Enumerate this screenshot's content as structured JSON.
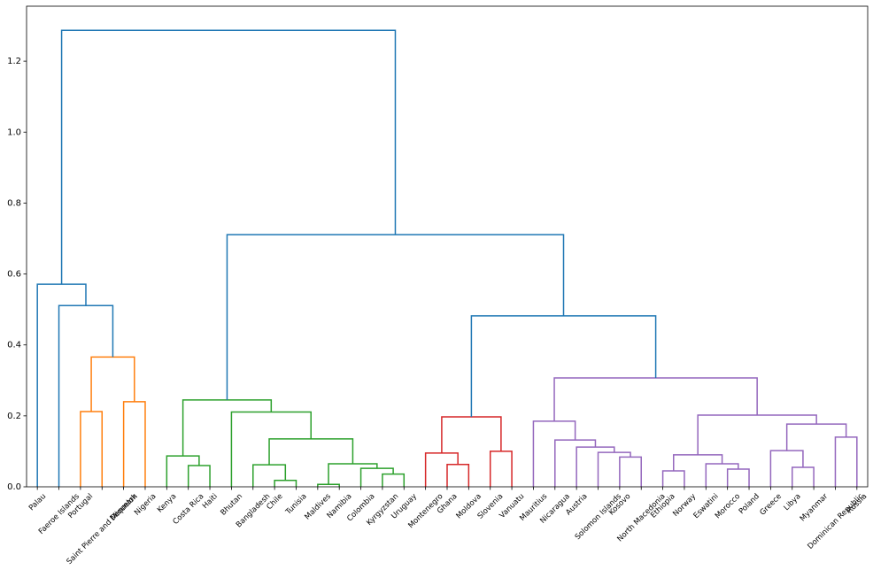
{
  "chart_data": {
    "type": "dendrogram",
    "leaves": [
      "Palau",
      "Faeroe Islands",
      "Portugal",
      "Saint Pierre and Miquelon",
      "Denmark",
      "Nigeria",
      "Kenya",
      "Costa Rica",
      "Haiti",
      "Bhutan",
      "Bangladesh",
      "Chile",
      "Tunisia",
      "Maldives",
      "Namibia",
      "Colombia",
      "Kyrgyzstan",
      "Uruguay",
      "Montenegro",
      "Ghana",
      "Moldova",
      "Slovenia",
      "Vanuatu",
      "Mauritius",
      "Nicaragua",
      "Austria",
      "Solomon Islands",
      "Kosovo",
      "North Macedonia",
      "Ethiopia",
      "Norway",
      "Eswatini",
      "Morocco",
      "Poland",
      "Greece",
      "Libya",
      "Myanmar",
      "Dominican Republic",
      "Russia"
    ],
    "merges": [
      {
        "children": [
          13,
          14
        ],
        "height": 0.007,
        "color": "#2ca02c"
      },
      {
        "children": [
          11,
          12
        ],
        "height": 0.018,
        "color": "#2ca02c"
      },
      {
        "children": [
          16,
          17
        ],
        "height": 0.036,
        "color": "#2ca02c"
      },
      {
        "children": [
          29,
          30
        ],
        "height": 0.045,
        "color": "#9467bd"
      },
      {
        "children": [
          32,
          33
        ],
        "height": 0.05,
        "color": "#9467bd"
      },
      {
        "children": [
          15,
          41
        ],
        "height": 0.052,
        "color": "#2ca02c"
      },
      {
        "children": [
          35,
          36
        ],
        "height": 0.055,
        "color": "#9467bd"
      },
      {
        "children": [
          7,
          8
        ],
        "height": 0.06,
        "color": "#2ca02c"
      },
      {
        "children": [
          10,
          40
        ],
        "height": 0.062,
        "color": "#2ca02c"
      },
      {
        "children": [
          19,
          20
        ],
        "height": 0.063,
        "color": "#d62728"
      },
      {
        "children": [
          39,
          44
        ],
        "height": 0.065,
        "color": "#2ca02c"
      },
      {
        "children": [
          31,
          43
        ],
        "height": 0.065,
        "color": "#9467bd"
      },
      {
        "children": [
          27,
          28
        ],
        "height": 0.084,
        "color": "#9467bd"
      },
      {
        "children": [
          6,
          46
        ],
        "height": 0.087,
        "color": "#2ca02c"
      },
      {
        "children": [
          42,
          50
        ],
        "height": 0.09,
        "color": "#9467bd"
      },
      {
        "children": [
          18,
          48
        ],
        "height": 0.095,
        "color": "#d62728"
      },
      {
        "children": [
          26,
          51
        ],
        "height": 0.097,
        "color": "#9467bd"
      },
      {
        "children": [
          21,
          22
        ],
        "height": 0.1,
        "color": "#d62728"
      },
      {
        "children": [
          34,
          45
        ],
        "height": 0.102,
        "color": "#9467bd"
      },
      {
        "children": [
          25,
          55
        ],
        "height": 0.112,
        "color": "#9467bd"
      },
      {
        "children": [
          24,
          58
        ],
        "height": 0.132,
        "color": "#9467bd"
      },
      {
        "children": [
          47,
          49
        ],
        "height": 0.135,
        "color": "#2ca02c"
      },
      {
        "children": [
          37,
          38
        ],
        "height": 0.14,
        "color": "#9467bd"
      },
      {
        "children": [
          57,
          61
        ],
        "height": 0.177,
        "color": "#9467bd"
      },
      {
        "children": [
          23,
          59
        ],
        "height": 0.185,
        "color": "#9467bd"
      },
      {
        "children": [
          54,
          56
        ],
        "height": 0.197,
        "color": "#d62728"
      },
      {
        "children": [
          53,
          62
        ],
        "height": 0.202,
        "color": "#9467bd"
      },
      {
        "children": [
          9,
          60
        ],
        "height": 0.211,
        "color": "#2ca02c"
      },
      {
        "children": [
          2,
          3
        ],
        "height": 0.212,
        "color": "#ff7f0e"
      },
      {
        "children": [
          4,
          5
        ],
        "height": 0.24,
        "color": "#ff7f0e"
      },
      {
        "children": [
          52,
          66
        ],
        "height": 0.245,
        "color": "#2ca02c"
      },
      {
        "children": [
          63,
          65
        ],
        "height": 0.307,
        "color": "#9467bd"
      },
      {
        "children": [
          67,
          68
        ],
        "height": 0.366,
        "color": "#ff7f0e"
      },
      {
        "children": [
          64,
          70
        ],
        "height": 0.482,
        "color": "#1f77b4"
      },
      {
        "children": [
          1,
          71
        ],
        "height": 0.511,
        "color": "#1f77b4"
      },
      {
        "children": [
          0,
          73
        ],
        "height": 0.571,
        "color": "#1f77b4"
      },
      {
        "children": [
          69,
          72
        ],
        "height": 0.711,
        "color": "#1f77b4"
      },
      {
        "children": [
          74,
          75
        ],
        "height": 1.287,
        "color": "#1f77b4"
      }
    ],
    "ylim": [
      0,
      1.355
    ],
    "yticks": [
      {
        "value": 0,
        "label": "0.0"
      },
      0.2,
      0.4,
      0.6,
      0.8,
      {
        "value": 1,
        "label": "1.0"
      },
      1.2
    ]
  }
}
